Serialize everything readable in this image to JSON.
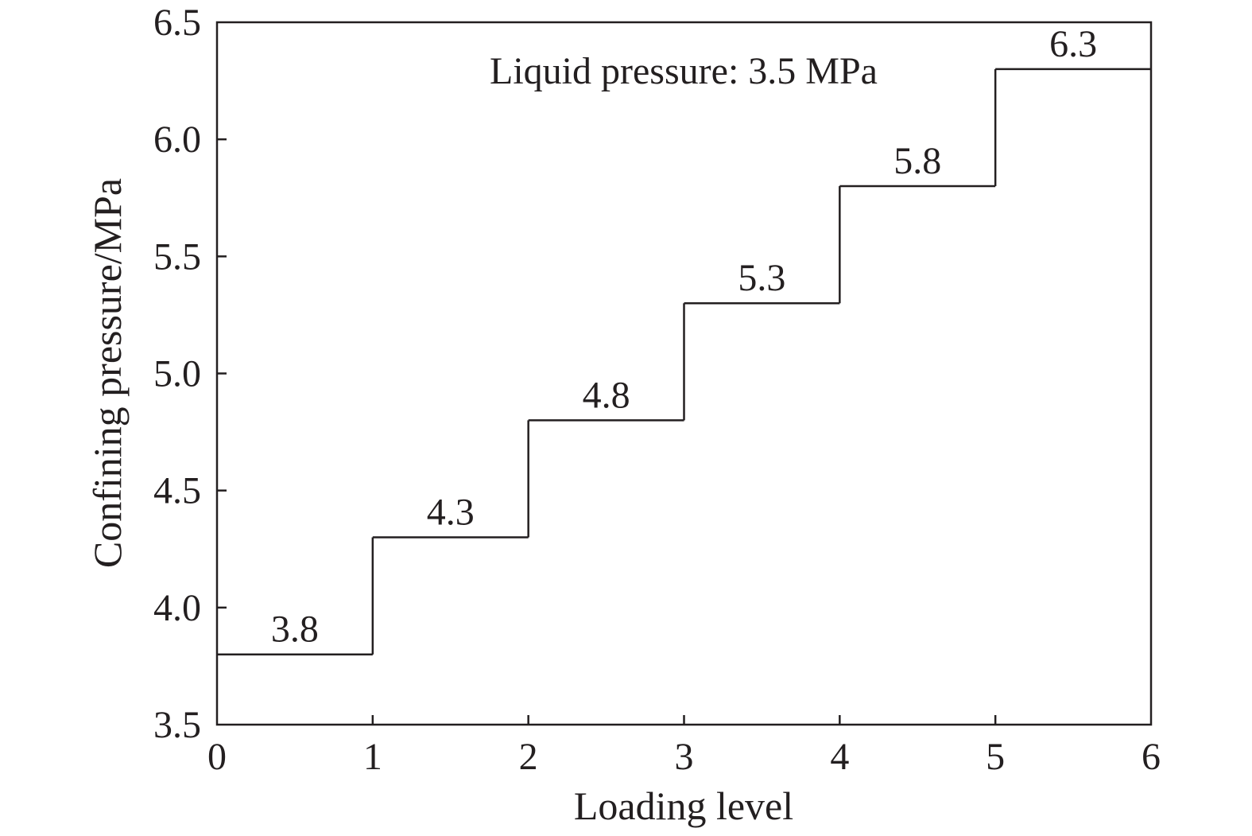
{
  "chart_data": {
    "type": "line",
    "step": true,
    "xlabel": "Loading level",
    "ylabel": "Confining pressure/MPa",
    "annotation": "Liquid pressure: 3.5 MPa",
    "xlim": [
      0,
      6
    ],
    "ylim": [
      3.5,
      6.5
    ],
    "x_ticks": [
      "0",
      "1",
      "2",
      "3",
      "4",
      "5",
      "6"
    ],
    "y_ticks": [
      "3.5",
      "4.0",
      "4.5",
      "5.0",
      "5.5",
      "6.0",
      "6.5"
    ],
    "series": [
      {
        "levels": [
          {
            "x_start": 0,
            "x_end": 1,
            "y": 3.8,
            "label": "3.8"
          },
          {
            "x_start": 1,
            "x_end": 2,
            "y": 4.3,
            "label": "4.3"
          },
          {
            "x_start": 2,
            "x_end": 3,
            "y": 4.8,
            "label": "4.8"
          },
          {
            "x_start": 3,
            "x_end": 4,
            "y": 5.3,
            "label": "5.3"
          },
          {
            "x_start": 4,
            "x_end": 5,
            "y": 5.8,
            "label": "5.8"
          },
          {
            "x_start": 5,
            "x_end": 6,
            "y": 6.3,
            "label": "6.3"
          }
        ]
      }
    ],
    "grid": false,
    "legend": "none",
    "colors": {
      "line": "#231f20",
      "text": "#231f20"
    }
  }
}
